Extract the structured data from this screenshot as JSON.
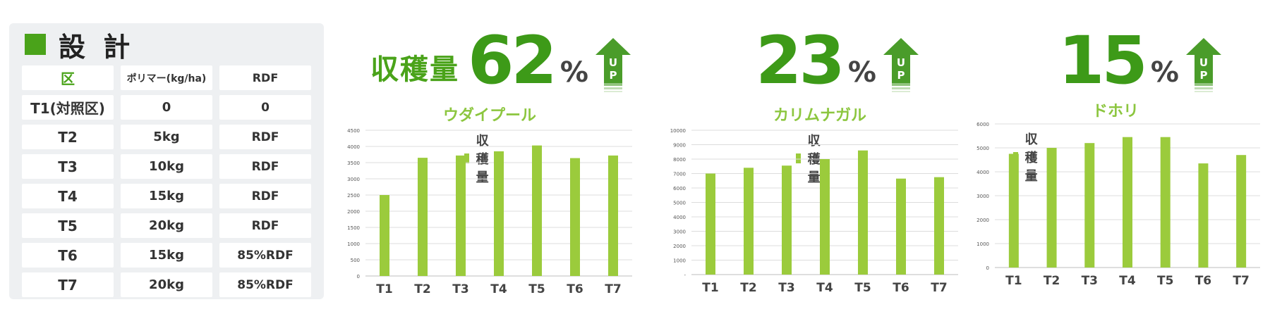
{
  "design": {
    "title": "設 計",
    "header": [
      "区",
      "ポリマー(kg/ha)",
      "RDF"
    ],
    "rows": [
      [
        "T1(対照区)",
        "0",
        "0"
      ],
      [
        "T2",
        "5kg",
        "RDF"
      ],
      [
        "T3",
        "10kg",
        "RDF"
      ],
      [
        "T4",
        "15kg",
        "RDF"
      ],
      [
        "T5",
        "20kg",
        "RDF"
      ],
      [
        "T6",
        "15kg",
        "85%RDF"
      ],
      [
        "T7",
        "20kg",
        "85%RDF"
      ]
    ]
  },
  "colors": {
    "accent": "#4aa31a",
    "bar": "#9bcb3c",
    "panel": "#eef0f2"
  },
  "chart_data": [
    {
      "type": "bar",
      "headline_label": "収穫量",
      "increase_value": "62",
      "increase_unit": "%",
      "up_text": [
        "U",
        "P"
      ],
      "title": "ウダイプール",
      "legend": "収穫量",
      "categories": [
        "T1",
        "T2",
        "T3",
        "T4",
        "T5",
        "T6",
        "T7"
      ],
      "values": [
        2500,
        3650,
        3720,
        3850,
        4030,
        3640,
        3720
      ],
      "yticks": [
        "0",
        "500",
        "1000",
        "1500",
        "2000",
        "2500",
        "3000",
        "3500",
        "4000",
        "4500"
      ],
      "ylim": [
        0,
        4500
      ],
      "grid": true
    },
    {
      "type": "bar",
      "headline_label": "",
      "increase_value": "23",
      "increase_unit": "%",
      "up_text": [
        "U",
        "P"
      ],
      "title": "カリムナガル",
      "legend": "収穫量",
      "categories": [
        "T1",
        "T2",
        "T3",
        "T4",
        "T5",
        "T6",
        "T7"
      ],
      "values": [
        7000,
        7400,
        7550,
        8000,
        8600,
        6650,
        6750
      ],
      "yticks": [
        "-",
        "1000",
        "2000",
        "3000",
        "4000",
        "5000",
        "6000",
        "7000",
        "8000",
        "9000",
        "10000"
      ],
      "ylim": [
        0,
        10000
      ],
      "grid": true
    },
    {
      "type": "bar",
      "headline_label": "",
      "increase_value": "15",
      "increase_unit": "%",
      "up_text": [
        "U",
        "P"
      ],
      "title": "ドホリ",
      "legend": "収穫量",
      "categories": [
        "T1",
        "T2",
        "T3",
        "T4",
        "T5",
        "T6",
        "T7"
      ],
      "values": [
        4750,
        5000,
        5200,
        5450,
        5450,
        4350,
        4700
      ],
      "yticks": [
        "0",
        "1000",
        "2000",
        "3000",
        "4000",
        "5000",
        "6000"
      ],
      "ylim": [
        0,
        6000
      ],
      "grid": true
    }
  ]
}
